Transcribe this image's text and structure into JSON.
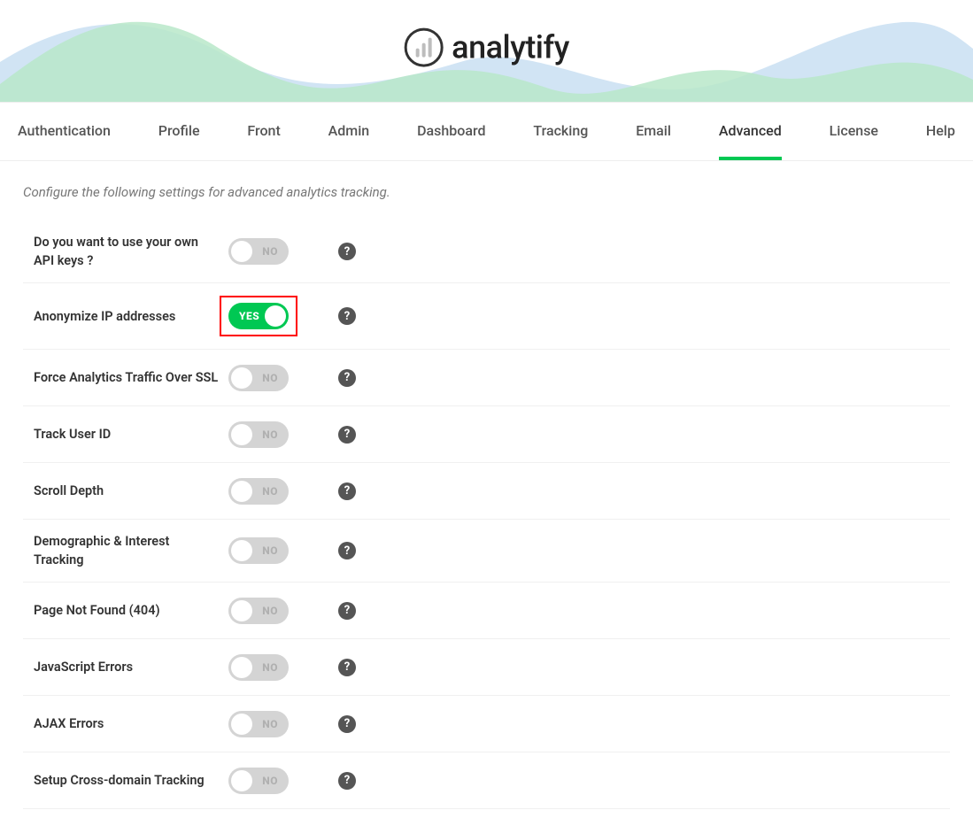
{
  "brand": {
    "name": "analytify"
  },
  "tabs": {
    "items": [
      "Authentication",
      "Profile",
      "Front",
      "Admin",
      "Dashboard",
      "Tracking",
      "Email",
      "Advanced",
      "License",
      "Help"
    ],
    "active_index": 7
  },
  "intro_text": "Configure the following settings for advanced analytics tracking.",
  "toggle_labels": {
    "on": "YES",
    "off": "NO"
  },
  "help_glyph": "?",
  "settings": [
    {
      "key": "own-api-keys",
      "label": "Do you want to use your own API keys ?",
      "value": false,
      "highlighted": false
    },
    {
      "key": "anonymize-ip",
      "label": "Anonymize IP addresses",
      "value": true,
      "highlighted": true
    },
    {
      "key": "force-ssl",
      "label": "Force Analytics Traffic Over SSL",
      "value": false,
      "highlighted": false
    },
    {
      "key": "track-user-id",
      "label": "Track User ID",
      "value": false,
      "highlighted": false
    },
    {
      "key": "scroll-depth",
      "label": "Scroll Depth",
      "value": false,
      "highlighted": false
    },
    {
      "key": "demographic-interest",
      "label": "Demographic & Interest Tracking",
      "value": false,
      "highlighted": false
    },
    {
      "key": "page-not-found",
      "label": "Page Not Found (404)",
      "value": false,
      "highlighted": false
    },
    {
      "key": "js-errors",
      "label": "JavaScript Errors",
      "value": false,
      "highlighted": false
    },
    {
      "key": "ajax-errors",
      "label": "AJAX Errors",
      "value": false,
      "highlighted": false
    },
    {
      "key": "cross-domain",
      "label": "Setup Cross-domain Tracking",
      "value": false,
      "highlighted": false
    }
  ],
  "colors": {
    "accent_green": "#00c853",
    "toggle_off_bg": "#d4d4d4",
    "highlight_border": "#ff0000",
    "wave_green": "#b9e8c9",
    "wave_blue": "#c9dff2"
  }
}
